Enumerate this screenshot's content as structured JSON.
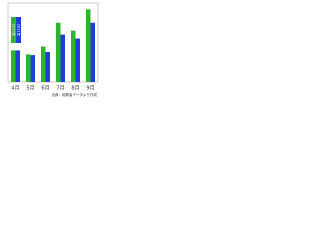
{
  "chart_data": {
    "type": "bar",
    "categories": [
      "4月",
      "5月",
      "6月",
      "7月",
      "8月",
      "9月"
    ],
    "series": [
      {
        "name": "2010年",
        "color": "#2db52d",
        "values": [
          40,
          35,
          45,
          75,
          65,
          92
        ]
      },
      {
        "name": "2011年",
        "color": "#1f3fd6",
        "values": [
          40,
          34,
          38,
          60,
          55,
          75
        ]
      }
    ],
    "ylim": [
      0,
      100
    ],
    "source": "出典：総務省データより作成",
    "legend": "upper-left"
  }
}
